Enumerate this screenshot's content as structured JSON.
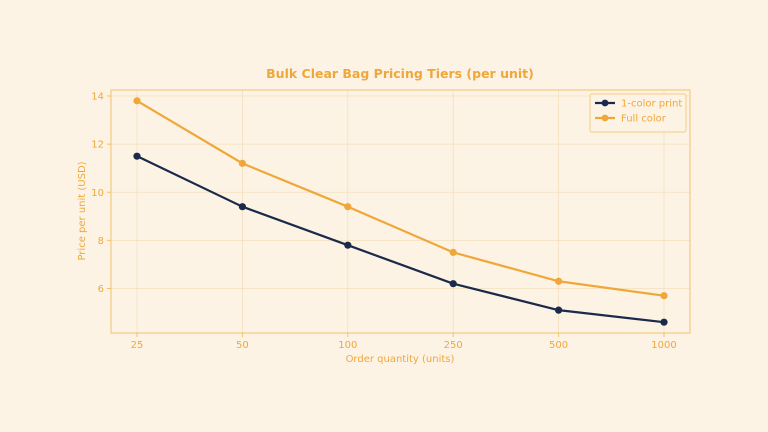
{
  "chart_data": {
    "type": "line",
    "title": "Bulk Clear Bag Pricing Tiers (per unit)",
    "xlabel": "Order quantity (units)",
    "ylabel": "Price per unit (USD)",
    "categories": [
      "25",
      "50",
      "100",
      "250",
      "500",
      "1000"
    ],
    "yticks": [
      6,
      8,
      10,
      12,
      14
    ],
    "ylim": [
      4.15,
      14.25
    ],
    "grid": true,
    "legend_position": "top-right",
    "series": [
      {
        "name": "1-color print",
        "color": "#1b2a4a",
        "values": [
          11.5,
          9.4,
          7.8,
          6.2,
          5.1,
          4.6
        ]
      },
      {
        "name": "Full color",
        "color": "#f0a73a",
        "values": [
          13.8,
          11.2,
          9.4,
          7.5,
          6.3,
          5.7
        ]
      }
    ]
  },
  "colors": {
    "background": "#fdf3e5",
    "axis": "#f0c26a",
    "grid": "#f3dfbd",
    "text": "#f0a73a"
  }
}
